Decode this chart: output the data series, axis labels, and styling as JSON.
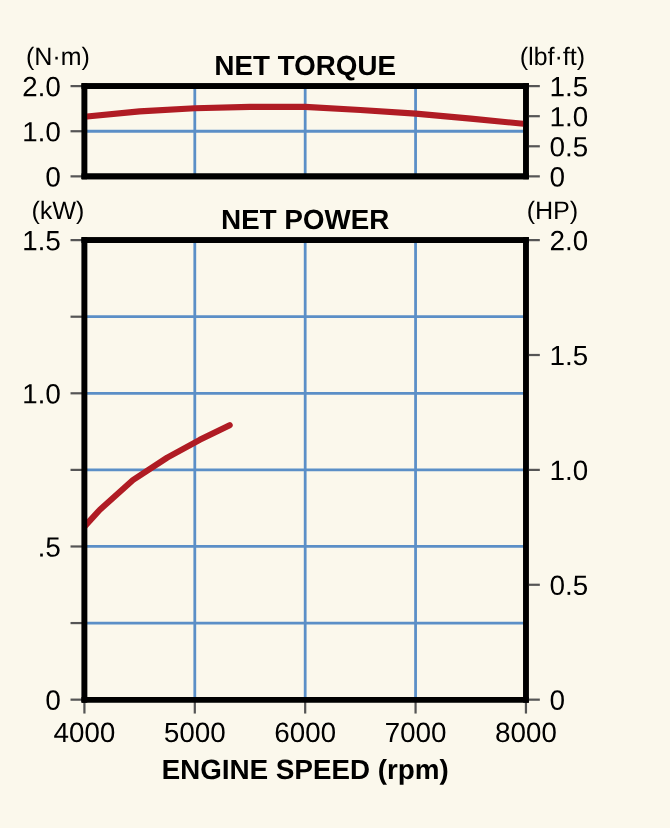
{
  "chart_data": [
    {
      "type": "line",
      "title": "NET TORQUE",
      "ylabel": "(N·m)",
      "y2label": "(lbf·ft)",
      "x": [
        4000,
        4500,
        5000,
        5500,
        6000,
        6500,
        7000,
        7500,
        8000
      ],
      "series": [
        {
          "color": "#b01c24",
          "values": [
            1.32,
            1.44,
            1.51,
            1.54,
            1.54,
            1.47,
            1.39,
            1.28,
            1.16
          ]
        }
      ],
      "xlim": [
        4000,
        8000
      ],
      "xticks": [
        4000,
        5000,
        6000,
        7000,
        8000
      ],
      "ylim": [
        0,
        2.0
      ],
      "yticks": [
        0,
        {
          "value": 1.0,
          "label": "1.0"
        },
        {
          "value": 2.0,
          "label": "2.0"
        }
      ],
      "y2lim": [
        0,
        1.5
      ],
      "y2ticks": [
        0,
        0.5,
        {
          "value": 1.0,
          "label": "1.0"
        },
        1.5
      ],
      "grid": true,
      "tick_labels": "y",
      "line_style": "solid"
    },
    {
      "type": "line",
      "title": "NET POWER",
      "ylabel": "(kW)",
      "y2label": "(HP)",
      "xlabel": "ENGINE SPEED (rpm)",
      "x": [
        4000,
        4140,
        4440,
        4750,
        5045,
        5316
      ],
      "series": [
        {
          "color": "#b01c24",
          "values": [
            0.565,
            0.62,
            0.717,
            0.79,
            0.848,
            0.896
          ]
        }
      ],
      "xlim": [
        4000,
        8000
      ],
      "xticks": [
        4000,
        5000,
        6000,
        7000,
        8000
      ],
      "ylim": [
        0,
        1.5
      ],
      "yticks": [
        0,
        {
          "value": 0.25,
          "label": null
        },
        {
          "value": 0.5,
          "label": ".5"
        },
        {
          "value": 0.75,
          "label": null
        },
        {
          "value": 1.0,
          "label": "1.0"
        },
        {
          "value": 1.25,
          "label": null
        },
        1.5
      ],
      "y2lim": [
        0,
        2.0
      ],
      "y2ticks": [
        0,
        0.5,
        {
          "value": 1.0,
          "label": "1.0"
        },
        {
          "value": 1.5,
          "label": "1.5"
        },
        {
          "value": 2.0,
          "label": "2.0"
        }
      ],
      "grid": true,
      "line_style": "solid"
    }
  ]
}
